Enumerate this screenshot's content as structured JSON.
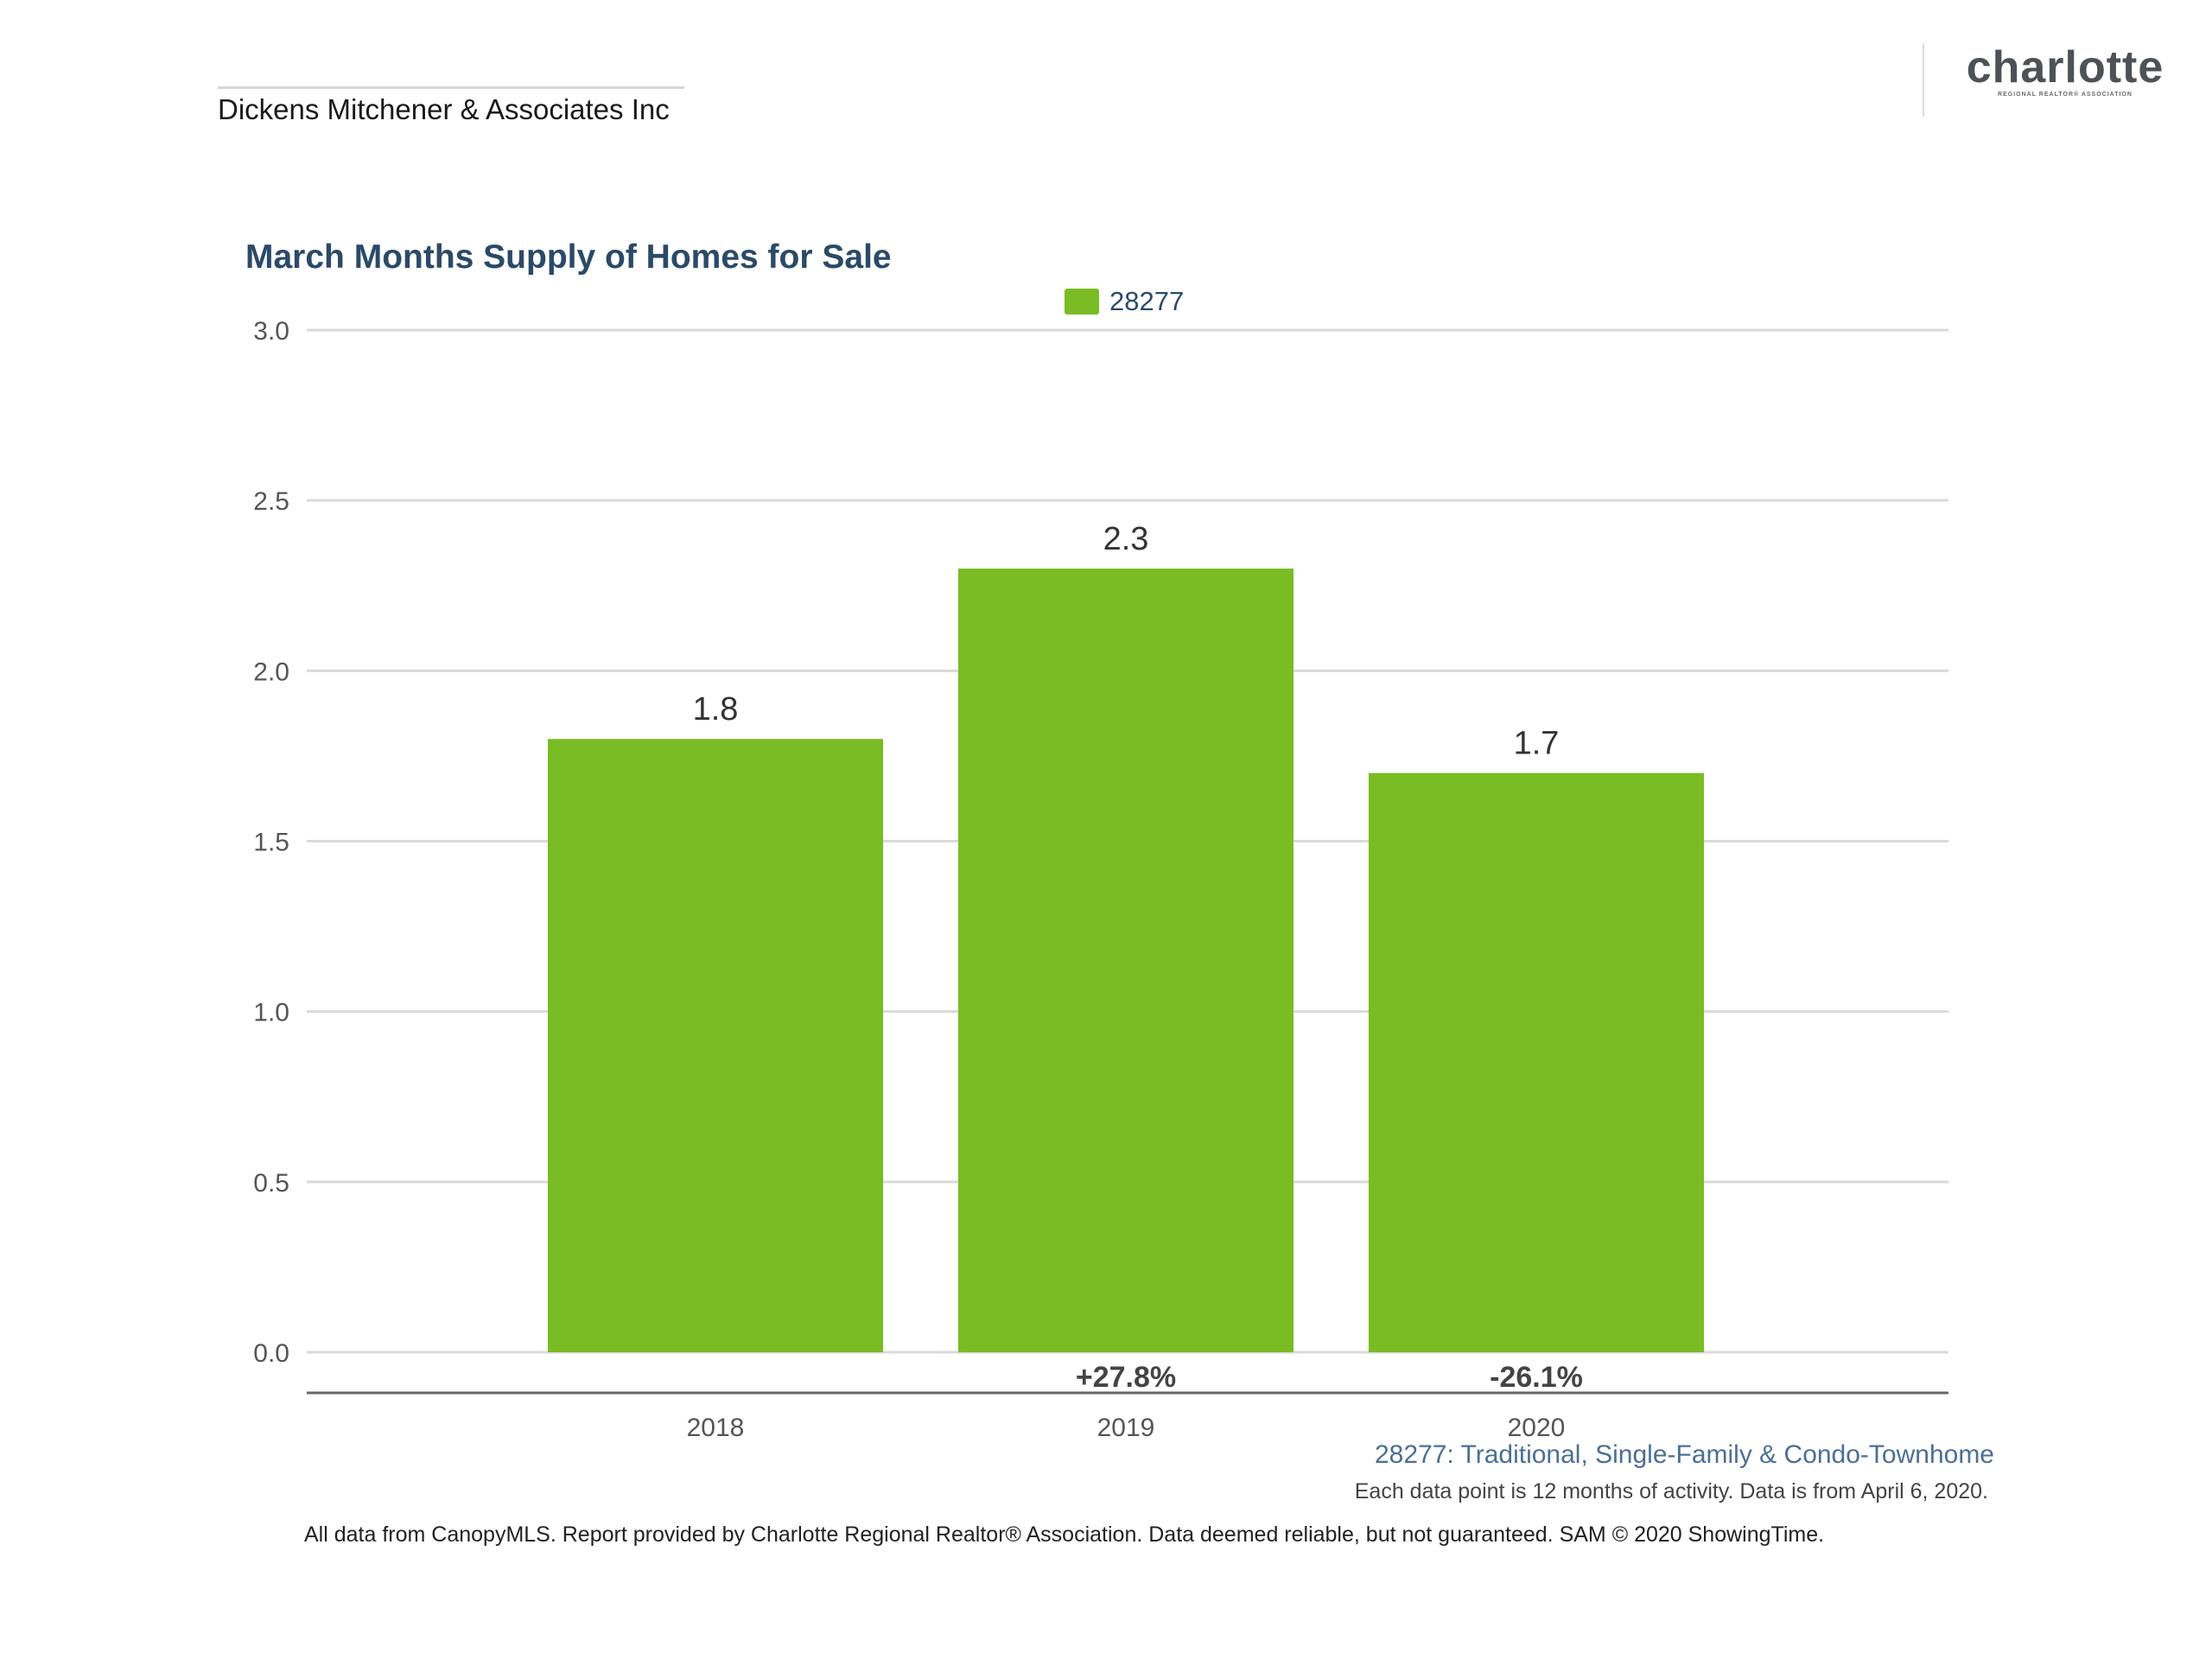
{
  "header": {
    "company": "Dickens Mitchener & Associates Inc",
    "logo_word": "charlotte",
    "logo_sub": "REGIONAL REALTOR® ASSOCIATION"
  },
  "chart_data": {
    "type": "bar",
    "title": "March Months Supply of Homes for Sale",
    "xlabel": "",
    "ylabel": "",
    "categories": [
      "2018",
      "2019",
      "2020"
    ],
    "series": [
      {
        "name": "28277",
        "values": [
          1.8,
          2.3,
          1.7
        ],
        "color": "#79bc24"
      }
    ],
    "value_labels": [
      "1.8",
      "2.3",
      "1.7"
    ],
    "change_labels": [
      "",
      "+27.8%",
      "-26.1%"
    ],
    "ylim": [
      0,
      3
    ],
    "yticks": [
      "0.0",
      "0.5",
      "1.0",
      "1.5",
      "2.0",
      "2.5",
      "3.0"
    ],
    "grid": true,
    "legend": "top-center"
  },
  "subtitle": "28277: Traditional, Single-Family & Condo-Townhome",
  "note": "Each data point is 12 months of activity. Data is from April 6, 2020.",
  "footer": "All data from CanopyMLS. Report provided by Charlotte Regional Realtor® Association. Data deemed reliable, but not guaranteed. SAM © 2020 ShowingTime."
}
